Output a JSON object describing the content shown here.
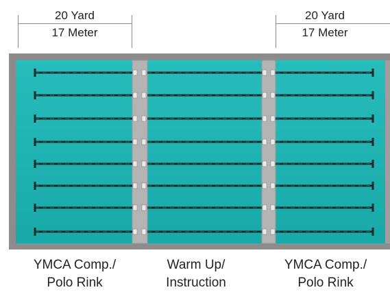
{
  "dimensions": {
    "left": {
      "yard": "20 Yard",
      "meter": "17 Meter"
    },
    "right": {
      "yard": "20 Yard",
      "meter": "17 Meter"
    }
  },
  "sections": [
    {
      "line1": "YMCA Comp./",
      "line2": "Polo Rink"
    },
    {
      "line1": "Warm Up/",
      "line2": "Instruction"
    },
    {
      "line1": "YMCA Comp./",
      "line2": "Polo Rink"
    }
  ],
  "colors": {
    "water": "#1fb5b4",
    "deck": "#8c8c8c",
    "bulkhead": "#b4b4b4",
    "lane_rope": "#1b2a2a"
  }
}
